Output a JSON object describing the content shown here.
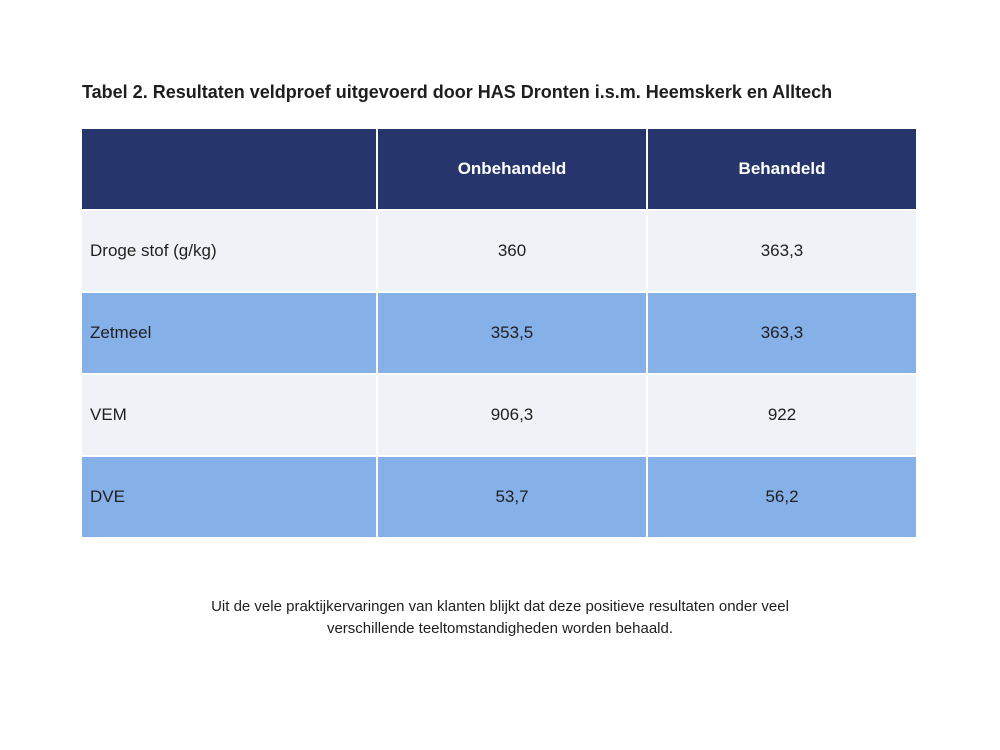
{
  "caption": {
    "title": "Tabel 2. Resultaten veldproef uitgevoerd door HAS Dronten i.s.m. Heemskerk en Alltech"
  },
  "table": {
    "headers": [
      "",
      "Onbehandeld",
      "Behandeld"
    ],
    "rows": [
      {
        "label": "Droge stof (g/kg)",
        "onbehandeld": "360",
        "behandeld": "363,3"
      },
      {
        "label": "Zetmeel",
        "onbehandeld": "353,5",
        "behandeld": "363,3"
      },
      {
        "label": "VEM",
        "onbehandeld": "906,3",
        "behandeld": "922"
      },
      {
        "label": "DVE",
        "onbehandeld": "53,7",
        "behandeld": "56,2"
      }
    ]
  },
  "colors": {
    "header_bg": "#26366d",
    "row_light": "#eff2f6",
    "row_blue": "#86b0e8"
  },
  "footer": {
    "line1": "Uit de vele praktijkervaringen van klanten blijkt dat deze positieve resultaten onder veel",
    "line2": "verschillende teeltomstandigheden worden behaald."
  }
}
